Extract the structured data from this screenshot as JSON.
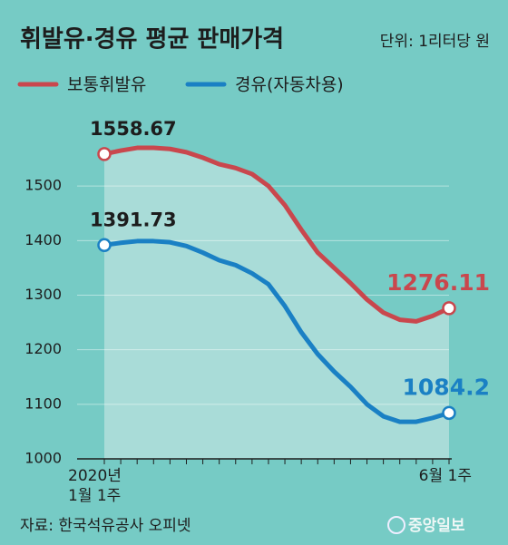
{
  "chart_data": {
    "type": "line",
    "title": "휘발유·경유 평균 판매가격",
    "subtitle": "단위: 1리터당 원",
    "source": "자료: 한국석유공사 오피넷",
    "logo": "중앙일보",
    "categories": [
      "2020년\n1월 1주",
      null,
      null,
      null,
      null,
      null,
      null,
      null,
      null,
      null,
      null,
      null,
      null,
      null,
      null,
      null,
      null,
      null,
      null,
      null,
      null,
      "6월 1주"
    ],
    "series": [
      {
        "name": "보통휘발유",
        "color": "#c9474d",
        "values": [
          1558.67,
          1565,
          1570,
          1570,
          1568,
          1562,
          1552,
          1540,
          1533,
          1522,
          1500,
          1465,
          1420,
          1378,
          1350,
          1322,
          1292,
          1268,
          1255,
          1252,
          1262,
          1276.11
        ]
      },
      {
        "name": "경유(자동차용)",
        "color": "#1a80c4",
        "values": [
          1391.73,
          1396,
          1399,
          1399,
          1397,
          1390,
          1378,
          1364,
          1355,
          1340,
          1320,
          1280,
          1232,
          1192,
          1160,
          1132,
          1100,
          1078,
          1068,
          1068,
          1075,
          1084.2
        ]
      }
    ],
    "ylim": [
      1000,
      1600
    ],
    "yticks": [
      1000,
      1100,
      1200,
      1300,
      1400,
      1500
    ],
    "grid": true
  }
}
